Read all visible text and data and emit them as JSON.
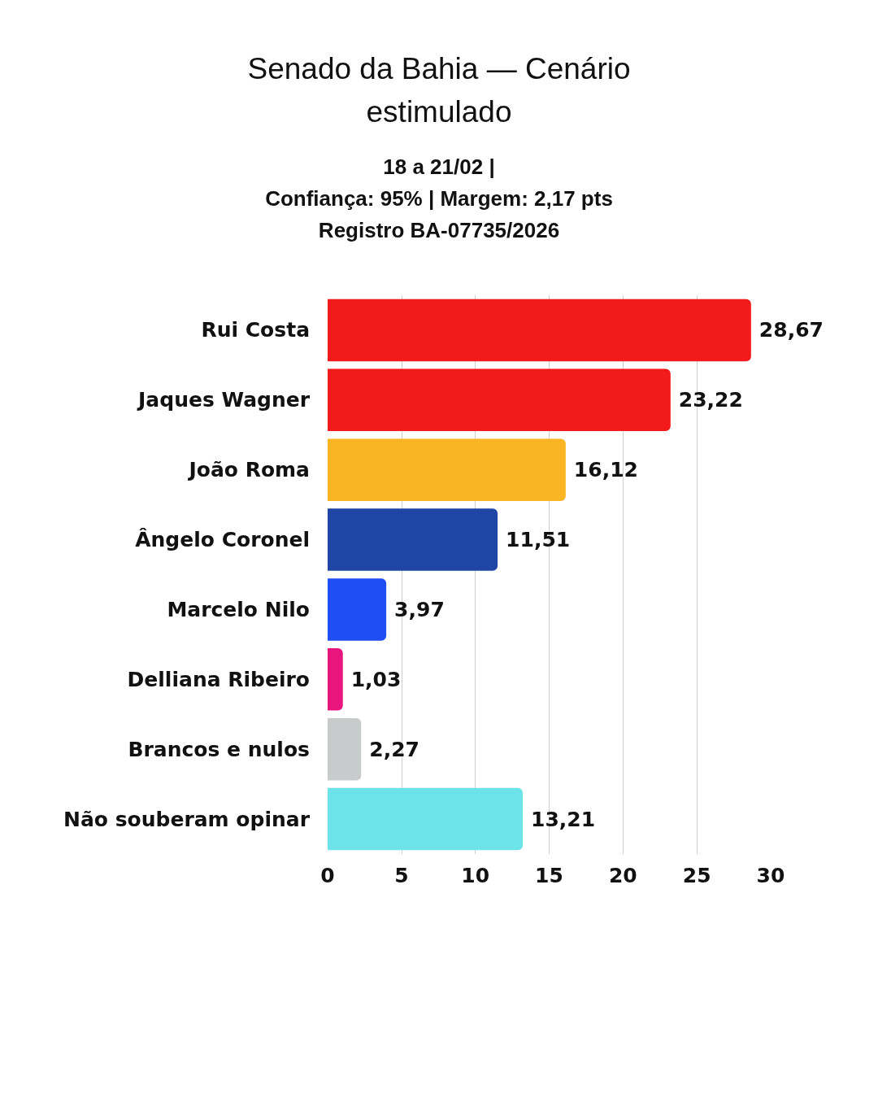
{
  "chart_data": {
    "type": "bar",
    "orientation": "horizontal",
    "title": "Senado da Bahia — Cenário estimulado",
    "subtitle": "18 a 21/02 |\nConfiança: 95% | Margem: 2,17 pts\nRegistro BA-07735/2026",
    "categories": [
      "Rui Costa",
      "Jaques Wagner",
      "João Roma",
      "Ângelo Coronel",
      "Marcelo Nilo",
      "Delliana Ribeiro",
      "Brancos e nulos",
      "Não souberam opinar"
    ],
    "values": [
      28.67,
      23.22,
      16.12,
      11.51,
      3.97,
      1.03,
      2.27,
      13.21
    ],
    "colors": [
      "#f21a1a",
      "#f21a1a",
      "#f9b522",
      "#1f46a5",
      "#1f4ef5",
      "#e8157f",
      "#c8cbcb",
      "#6ce3e8"
    ],
    "value_labels": [
      "28,67",
      "23,22",
      "16,12",
      "11,51",
      "3,97",
      "1,03",
      "2,27",
      "13,21"
    ],
    "xlim": [
      0,
      30
    ],
    "xticks": [
      0,
      5,
      10,
      15,
      20,
      25,
      30
    ],
    "grid": "x"
  }
}
